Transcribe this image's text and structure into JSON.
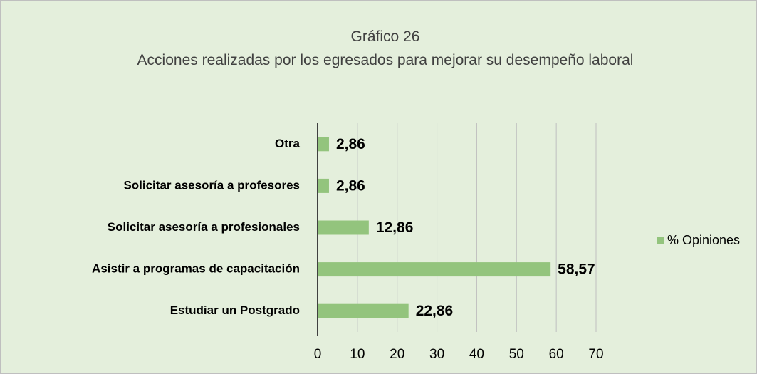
{
  "chart_data": {
    "type": "bar",
    "orientation": "horizontal",
    "title": "Gráfico 26",
    "subtitle": "Acciones realizadas por los egresados para mejorar su desempeño laboral",
    "categories": [
      "Otra",
      "Solicitar asesoría a profesores",
      "Solicitar asesoría a profesionales",
      "Asistir a programas de capacitación",
      "Estudiar un Postgrado"
    ],
    "series": [
      {
        "name": "% Opiniones",
        "color": "#93c47d",
        "values": [
          2.86,
          2.86,
          12.86,
          58.57,
          22.86
        ],
        "value_labels": [
          "2,86",
          "2,86",
          "12,86",
          "58,57",
          "22,86"
        ]
      }
    ],
    "xlim": [
      0,
      70
    ],
    "xticks": [
      0,
      10,
      20,
      30,
      40,
      50,
      60,
      70
    ],
    "grid": true,
    "legend": "right"
  }
}
